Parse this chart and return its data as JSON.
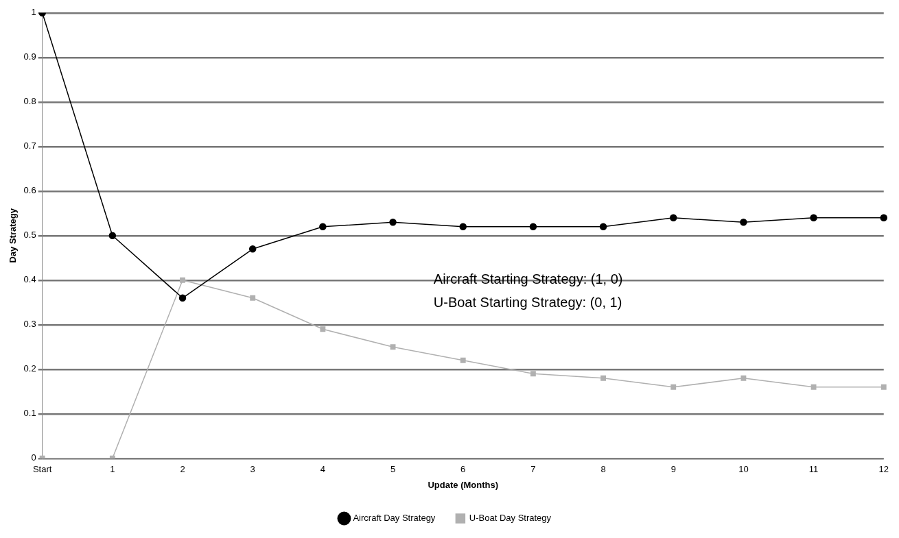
{
  "chart_data": {
    "type": "line",
    "xlabel": "Update (Months)",
    "ylabel": "Day Strategy",
    "categories": [
      "Start",
      "1",
      "2",
      "3",
      "4",
      "5",
      "6",
      "7",
      "8",
      "9",
      "10",
      "11",
      "12"
    ],
    "series": [
      {
        "name": "Aircraft Day Strategy",
        "color": "#000000",
        "marker": "circle",
        "values": [
          1,
          0.5,
          0.36,
          0.47,
          0.52,
          0.53,
          0.52,
          0.52,
          0.52,
          0.54,
          0.53,
          0.54,
          0.54
        ]
      },
      {
        "name": "U-Boat Day Strategy",
        "color": "#b0b0b0",
        "marker": "square",
        "values": [
          0,
          0,
          0.4,
          0.36,
          0.29,
          0.25,
          0.22,
          0.19,
          0.18,
          0.16,
          0.18,
          0.16,
          0.16
        ]
      }
    ],
    "ylim": [
      0,
      1
    ],
    "yticks": [
      0,
      0.1,
      0.2,
      0.3,
      0.4,
      0.5,
      0.6,
      0.7,
      0.8,
      0.9,
      1
    ],
    "grid": "y",
    "legend": "bottom",
    "annotations": [
      "Aircraft Starting Strategy: (1, 0)",
      "U-Boat Starting Strategy: (0, 1)"
    ]
  }
}
